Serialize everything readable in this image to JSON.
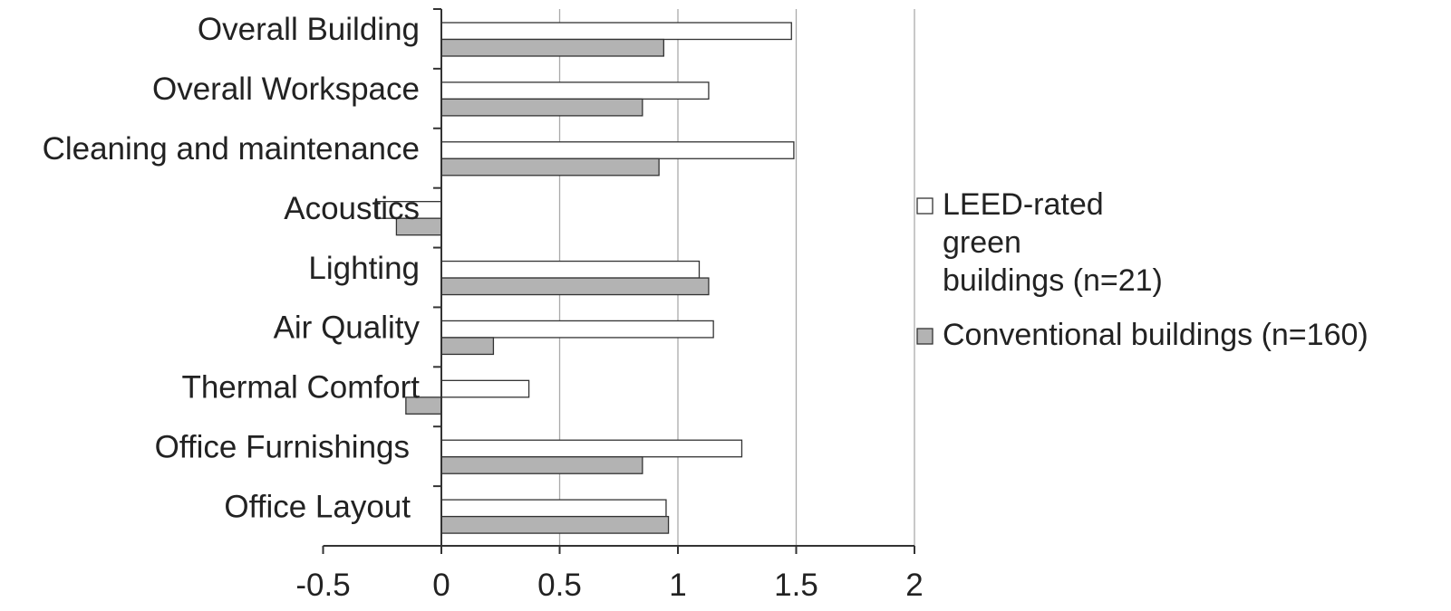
{
  "chart_data": {
    "type": "bar",
    "orientation": "horizontal",
    "title": "",
    "xlabel": "",
    "ylabel": "",
    "xlim": [
      -0.5,
      2
    ],
    "xticks": [
      -0.5,
      0,
      0.5,
      1,
      1.5,
      2
    ],
    "xtick_labels": [
      "-0.5",
      "0",
      "0.5",
      "1",
      "1.5",
      "2"
    ],
    "grid": "vertical",
    "legend_position": "right",
    "categories": [
      "Overall Building",
      "Overall Workspace",
      "Cleaning and maintenance",
      "Acoustics",
      "Lighting",
      "Air Quality",
      "Thermal Comfort",
      "Office Furnishings",
      "Office Layout"
    ],
    "series": [
      {
        "name": "LEED-rated green buildings (n=21)",
        "legend_lines": [
          "LEED-rated",
          "green",
          "buildings (n=21)"
        ],
        "color": "#ffffff",
        "values": [
          1.48,
          1.13,
          1.49,
          -0.27,
          1.09,
          1.15,
          0.37,
          1.27,
          0.95
        ]
      },
      {
        "name": "Conventional buildings (n=160)",
        "legend_lines": [
          "Conventional buildings (n=160)"
        ],
        "color": "#b3b3b3",
        "values": [
          0.94,
          0.85,
          0.92,
          -0.19,
          1.13,
          0.22,
          -0.15,
          0.85,
          0.96
        ]
      }
    ]
  }
}
